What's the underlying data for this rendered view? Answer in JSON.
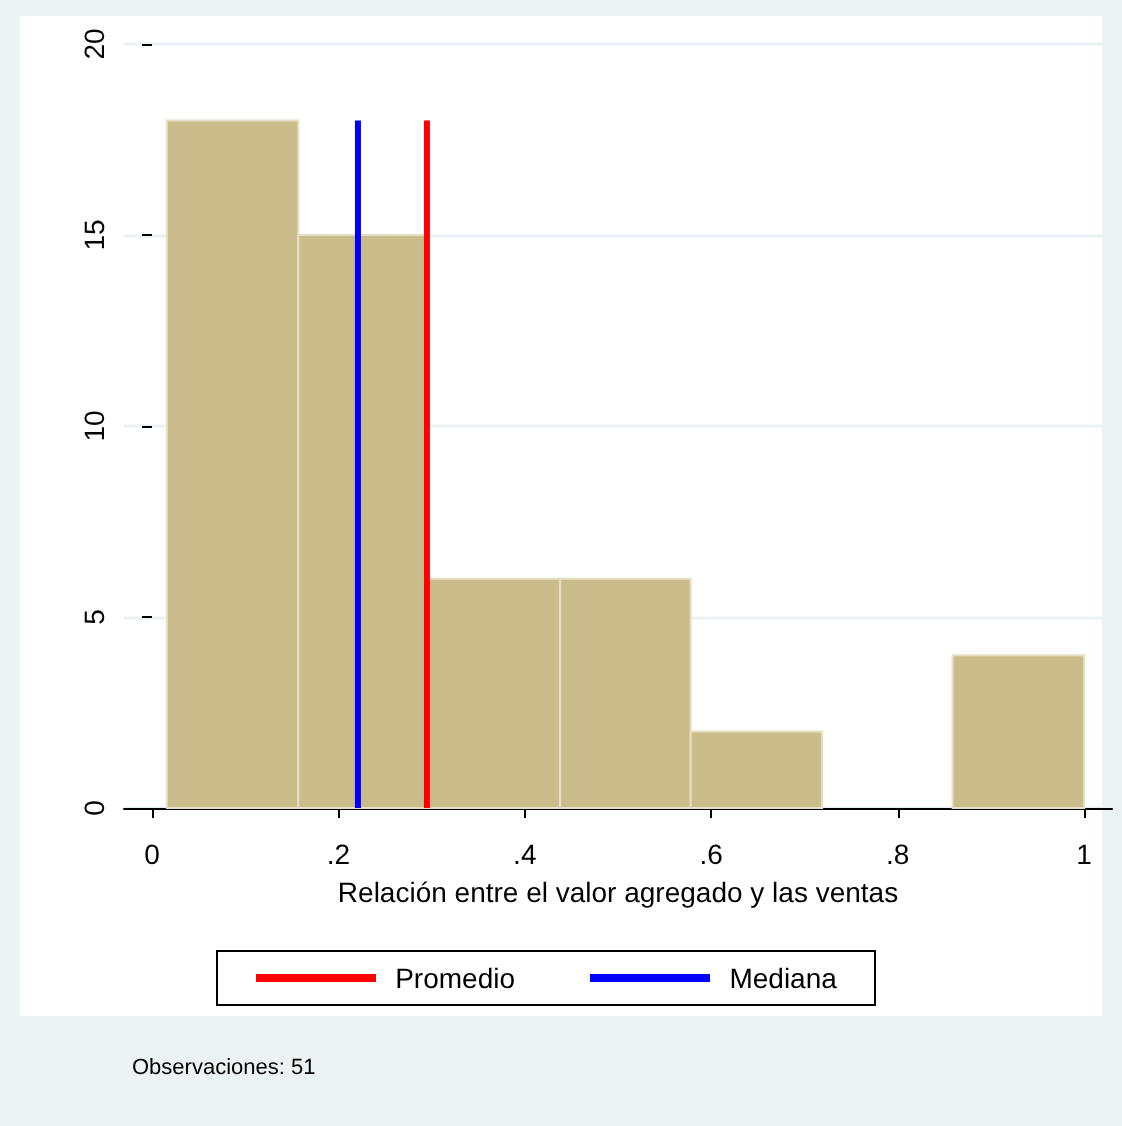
{
  "chart_data": {
    "type": "histogram",
    "xlabel": "Relación entre el valor agregado y las ventas",
    "bins": [
      0.016,
      0.157,
      0.297,
      0.438,
      0.578,
      0.719,
      0.859,
      1.0
    ],
    "values": [
      18,
      15,
      6,
      6,
      2,
      0,
      4
    ],
    "color": "#cbbd8b",
    "xlim": [
      -0.03,
      1.03
    ],
    "xticks": [
      0,
      {
        "value": 0.2,
        "label": ".2"
      },
      {
        "value": 0.4,
        "label": ".4"
      },
      {
        "value": 0.6,
        "label": ".6"
      },
      {
        "value": 0.8,
        "label": ".8"
      },
      1
    ],
    "ylim": [
      0,
      20
    ],
    "yticks": [
      0,
      5,
      10,
      15,
      20
    ],
    "grid": "y",
    "legend": "bottom",
    "ref_lines": [
      {
        "axis": "x",
        "value": 0.295,
        "label": "Promedio",
        "color": "#ff0000"
      },
      {
        "axis": "x",
        "value": 0.221,
        "label": "Mediana",
        "color": "#0000ff"
      }
    ],
    "annotations": [
      "Observaciones: 51"
    ]
  }
}
